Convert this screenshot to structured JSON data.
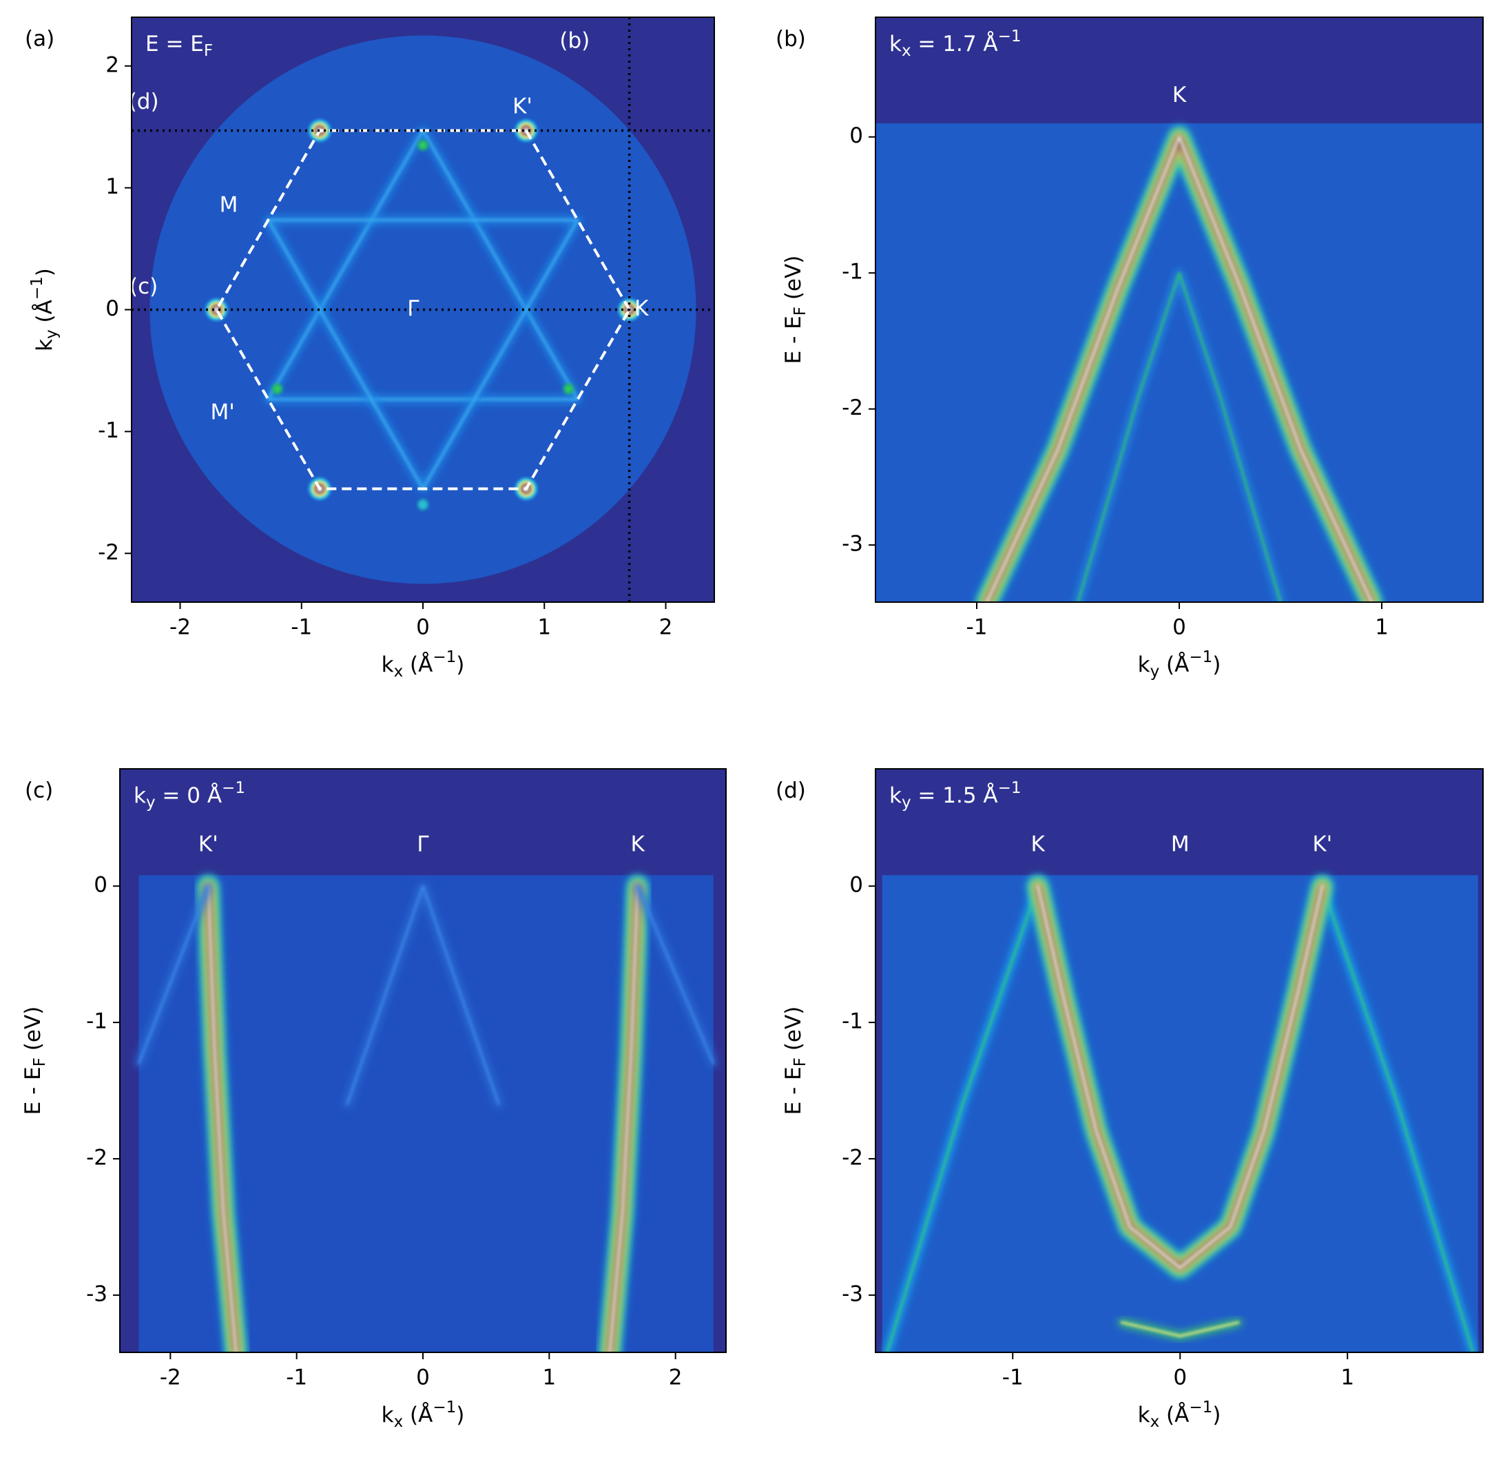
{
  "chart_data": [
    {
      "type": "heatmap",
      "panel": "(a)",
      "inset_label": [
        {
          "t": "E = E"
        },
        {
          "t": "F",
          "sub": true
        }
      ],
      "xlabel": [
        {
          "t": "k"
        },
        {
          "t": "x",
          "sub": true
        },
        {
          "t": " (Å"
        },
        {
          "t": "−1",
          "sup": true
        },
        {
          "t": ")"
        }
      ],
      "ylabel": [
        {
          "t": "k"
        },
        {
          "t": "y",
          "sub": true
        },
        {
          "t": " (Å"
        },
        {
          "t": "−1",
          "sup": true
        },
        {
          "t": ")"
        }
      ],
      "xlim": [
        -2.4,
        2.4
      ],
      "ylim": [
        -2.4,
        2.4
      ],
      "xticks": [
        -2,
        -1,
        0,
        1,
        2
      ],
      "yticks": [
        -2,
        -1,
        0,
        1,
        2
      ],
      "background": "#2e3192",
      "data_color": "#1f57c4",
      "radius": 2.25,
      "bands": [
        {
          "x": [
            0,
            1.275,
            -1.275,
            0
          ],
          "y": [
            1.47,
            -0.736,
            -0.736,
            1.47
          ],
          "colors": [
            "#1a8ae8",
            "#3fb0f0"
          ]
        },
        {
          "x": [
            0,
            1.275,
            -1.275,
            0
          ],
          "y": [
            -1.47,
            0.736,
            0.736,
            -1.47
          ],
          "colors": [
            "#1a8ae8",
            "#3fb0f0"
          ]
        }
      ],
      "spots": {
        "x": [
          1.7,
          0.85,
          -0.85,
          -1.7,
          -0.85,
          0.85,
          0,
          -1.2,
          1.2,
          0
        ],
        "y": [
          0,
          1.47,
          1.47,
          0,
          -1.47,
          -1.47,
          1.35,
          -0.65,
          -0.65,
          -1.6
        ],
        "colors": [
          [
            "#20c0f0",
            "#f0f080",
            "#8a6060",
            "#f0e8e8"
          ],
          [
            "#20c0f0",
            "#f0f080",
            "#8a6060",
            "#f0e8e8"
          ],
          [
            "#20c0f0",
            "#f0f080",
            "#8a6060",
            "#f0e8e8"
          ],
          [
            "#20c0f0",
            "#f0f080",
            "#8a6060",
            "#f0e8e8"
          ],
          [
            "#20c0f0",
            "#f0f080",
            "#8a6060",
            "#f0e8e8"
          ],
          [
            "#20c0f0",
            "#f0f080",
            "#8a6060",
            "#f0e8e8"
          ],
          [
            "#20b070",
            "#30d060"
          ],
          [
            "#20b070",
            "#30d060"
          ],
          [
            "#20b070",
            "#30d060"
          ],
          [
            "#20b0c0",
            "#30c0e0"
          ]
        ]
      },
      "hexagon": {
        "x": [
          1.7,
          0.85,
          -0.85,
          -1.7,
          -0.85,
          0.85,
          1.7
        ],
        "y": [
          0,
          1.47,
          1.47,
          0,
          -1.47,
          -1.47,
          0
        ]
      },
      "cuts": [
        {
          "axis": "y",
          "value": 1.47
        },
        {
          "axis": "y",
          "value": 0
        },
        {
          "axis": "x",
          "value": 1.7
        }
      ],
      "annotations": [
        {
          "text": "(d)",
          "x": -2.3,
          "y": 1.7
        },
        {
          "text": "(c)",
          "x": -2.3,
          "y": 0.18
        },
        {
          "text": "(b)",
          "x": 1.25,
          "y": 2.2
        },
        {
          "text": "M",
          "x": -1.6,
          "y": 0.85
        },
        {
          "text": "M'",
          "x": -1.65,
          "y": -0.85
        },
        {
          "text": "Γ",
          "x": -0.08,
          "y": 0
        },
        {
          "text": "K",
          "x": 1.8,
          "y": 0
        },
        {
          "text": "K'",
          "x": 0.82,
          "y": 1.66
        }
      ]
    },
    {
      "type": "heatmap",
      "panel": "(b)",
      "inset_label": [
        {
          "t": "k"
        },
        {
          "t": "x",
          "sub": true
        },
        {
          "t": " = 1.7 Å"
        },
        {
          "t": "−1",
          "sup": true
        }
      ],
      "xlabel": [
        {
          "t": "k"
        },
        {
          "t": "y",
          "sub": true
        },
        {
          "t": " (Å"
        },
        {
          "t": "−1",
          "sup": true
        },
        {
          "t": ")"
        }
      ],
      "ylabel": [
        {
          "t": "E - E"
        },
        {
          "t": "F",
          "sub": true
        },
        {
          "t": " (eV)"
        }
      ],
      "xlim": [
        -1.5,
        1.5
      ],
      "ylim": [
        -3.42,
        0.88
      ],
      "xticks": [
        -1,
        0,
        1
      ],
      "yticks": [
        -3,
        -2,
        -1,
        0
      ],
      "background": "#2e3192",
      "data_color": "#1f5cc8",
      "extent": [
        -1.5,
        1.5,
        -3.42,
        0.1
      ],
      "bands": [
        {
          "x": [
            -0.95,
            -0.6,
            -0.3,
            0,
            0.3,
            0.6,
            0.95
          ],
          "y": [
            -3.42,
            -2.3,
            -1.1,
            0,
            -1.1,
            -2.3,
            -3.42
          ],
          "colors": [
            "#18b8f0",
            "#40d060",
            "#f0f080",
            "#8a6060",
            "#e8e0e0"
          ]
        },
        {
          "x": [
            -0.5,
            -0.2,
            0,
            0.2,
            0.5
          ],
          "y": [
            -3.42,
            -1.9,
            -1.0,
            -1.9,
            -3.42
          ],
          "colors": [
            "#2090e0",
            "#30c070"
          ]
        }
      ],
      "annotations": [
        {
          "text": "K",
          "x": 0,
          "y": 0.3
        }
      ]
    },
    {
      "type": "heatmap",
      "panel": "(c)",
      "inset_label": [
        {
          "t": "k"
        },
        {
          "t": "y",
          "sub": true
        },
        {
          "t": " = 0 Å"
        },
        {
          "t": "−1",
          "sup": true
        }
      ],
      "xlabel": [
        {
          "t": "k"
        },
        {
          "t": "x",
          "sub": true
        },
        {
          "t": " (Å"
        },
        {
          "t": "−1",
          "sup": true
        },
        {
          "t": ")"
        }
      ],
      "ylabel": [
        {
          "t": "E - E"
        },
        {
          "t": "F",
          "sub": true
        },
        {
          "t": " (eV)"
        }
      ],
      "xlim": [
        -2.4,
        2.4
      ],
      "ylim": [
        -3.42,
        0.86
      ],
      "xticks": [
        -2,
        -1,
        0,
        1,
        2
      ],
      "yticks": [
        -3,
        -2,
        -1,
        0
      ],
      "background": "#2e3192",
      "data_color": "#2050c0",
      "extent": [
        -2.25,
        2.3,
        -3.42,
        0.08
      ],
      "bands": [
        {
          "x": [
            -1.7,
            -1.65,
            -1.58,
            -1.48
          ],
          "y": [
            0,
            -1.2,
            -2.4,
            -3.42
          ],
          "colors": [
            "#18b8f0",
            "#40d060",
            "#f0f080",
            "#8a6060",
            "#e0d8d8"
          ]
        },
        {
          "x": [
            1.7,
            1.65,
            1.58,
            1.48
          ],
          "y": [
            0,
            -1.2,
            -2.4,
            -3.42
          ],
          "colors": [
            "#18b8f0",
            "#40d060",
            "#f0f080",
            "#8a6060",
            "#e0d8d8"
          ]
        },
        {
          "x": [
            -0.6,
            0,
            0.6
          ],
          "y": [
            -1.6,
            0,
            -1.6
          ],
          "colors": [
            "#2a70d8",
            "#3a86e6"
          ]
        },
        {
          "x": [
            -2.25,
            -1.7
          ],
          "y": [
            -1.3,
            0
          ],
          "colors": [
            "#2a70d8",
            "#3a86e6"
          ]
        },
        {
          "x": [
            2.3,
            1.7
          ],
          "y": [
            -1.3,
            0
          ],
          "colors": [
            "#2a70d8",
            "#3a86e6"
          ]
        }
      ],
      "annotations": [
        {
          "text": "K'",
          "x": -1.7,
          "y": 0.3
        },
        {
          "text": "Γ",
          "x": 0,
          "y": 0.3
        },
        {
          "text": "K",
          "x": 1.7,
          "y": 0.3
        }
      ]
    },
    {
      "type": "heatmap",
      "panel": "(d)",
      "inset_label": [
        {
          "t": "k"
        },
        {
          "t": "y",
          "sub": true
        },
        {
          "t": " = 1.5 Å"
        },
        {
          "t": "−1",
          "sup": true
        }
      ],
      "xlabel": [
        {
          "t": "k"
        },
        {
          "t": "x",
          "sub": true
        },
        {
          "t": " (Å"
        },
        {
          "t": "−1",
          "sup": true
        },
        {
          "t": ")"
        }
      ],
      "ylabel": [
        {
          "t": "E - E"
        },
        {
          "t": "F",
          "sub": true
        },
        {
          "t": " (eV)"
        }
      ],
      "xlim": [
        -1.82,
        1.81
      ],
      "ylim": [
        -3.42,
        0.86
      ],
      "xticks": [
        -1,
        0,
        1
      ],
      "yticks": [
        -3,
        -2,
        -1,
        0
      ],
      "background": "#2e3192",
      "data_color": "#1f5cc8",
      "extent": [
        -1.78,
        1.78,
        -3.42,
        0.08
      ],
      "bands": [
        {
          "x": [
            -1.75,
            -1.3,
            -0.85
          ],
          "y": [
            -3.42,
            -1.6,
            0
          ],
          "colors": [
            "#18b0f0",
            "#30c878"
          ]
        },
        {
          "x": [
            1.75,
            1.3,
            0.85
          ],
          "y": [
            -3.42,
            -1.6,
            0
          ],
          "colors": [
            "#18b0f0",
            "#30c878"
          ]
        },
        {
          "x": [
            -0.35,
            0,
            0.35
          ],
          "y": [
            -3.2,
            -3.3,
            -3.2
          ],
          "colors": [
            "#40d060",
            "#f0f080"
          ]
        },
        {
          "x": [
            -0.85,
            -0.7,
            -0.5,
            -0.3,
            0,
            0.3,
            0.5,
            0.7,
            0.85
          ],
          "y": [
            0,
            -0.8,
            -1.8,
            -2.5,
            -2.8,
            -2.5,
            -1.8,
            -0.8,
            0
          ],
          "colors": [
            "#18b8f0",
            "#40d060",
            "#f0f080",
            "#8a6060",
            "#e8e0e0"
          ]
        }
      ],
      "annotations": [
        {
          "text": "K",
          "x": -0.85,
          "y": 0.3
        },
        {
          "text": "M",
          "x": 0,
          "y": 0.3
        },
        {
          "text": "K'",
          "x": 0.85,
          "y": 0.3
        }
      ]
    }
  ]
}
